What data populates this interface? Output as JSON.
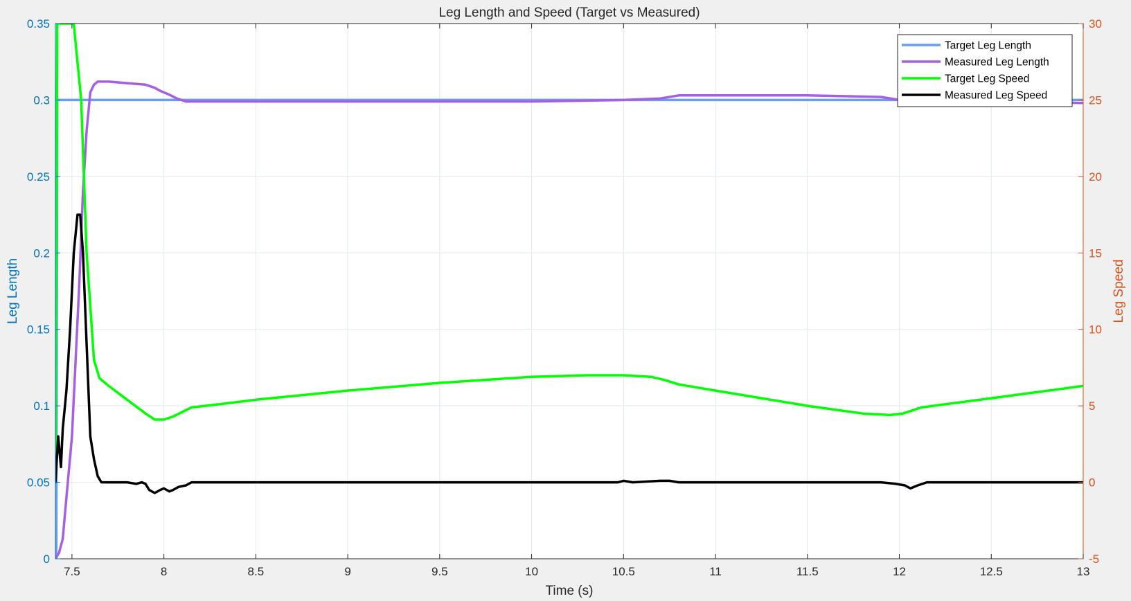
{
  "chart_data": {
    "type": "line",
    "title": "Leg Length and Speed (Target vs Measured)",
    "xlabel": "Time (s)",
    "ylabel_left": "Leg Length",
    "ylabel_right": "Leg Speed",
    "xlim": [
      7.41,
      13
    ],
    "ylim_left": [
      0,
      0.35
    ],
    "ylim_right": [
      -5,
      30
    ],
    "xticks": [
      "7.5",
      "8",
      "8.5",
      "9",
      "9.5",
      "10",
      "10.5",
      "11",
      "11.5",
      "12",
      "12.5",
      "13"
    ],
    "xtick_values": [
      7.5,
      8,
      8.5,
      9,
      9.5,
      10,
      10.5,
      11,
      11.5,
      12,
      12.5,
      13
    ],
    "yticks_left": [
      "0",
      "0.05",
      "0.1",
      "0.15",
      "0.2",
      "0.25",
      "0.3",
      "0.35"
    ],
    "ytick_values_left": [
      0,
      0.05,
      0.1,
      0.15,
      0.2,
      0.25,
      0.3,
      0.35
    ],
    "yticks_right": [
      "-5",
      "0",
      "5",
      "10",
      "15",
      "20",
      "25",
      "30"
    ],
    "ytick_values_right": [
      -5,
      0,
      5,
      10,
      15,
      20,
      25,
      30
    ],
    "grid": true,
    "legend_position": "top-right",
    "colors": {
      "left_axis": "#0072bd",
      "right_axis": "#d95319",
      "grid": "#dfe9f1",
      "background": "#ffffff"
    },
    "series": [
      {
        "name": "Target Leg Length",
        "axis": "left",
        "color": "#6a9df0",
        "x": [
          7.41,
          7.415,
          7.42,
          13
        ],
        "y": [
          0,
          0,
          0.3,
          0.3
        ]
      },
      {
        "name": "Measured Leg Length",
        "axis": "left",
        "color": "#a55fe3",
        "x": [
          7.41,
          7.43,
          7.45,
          7.47,
          7.5,
          7.52,
          7.54,
          7.56,
          7.58,
          7.6,
          7.62,
          7.64,
          7.7,
          7.8,
          7.9,
          7.95,
          7.98,
          8.02,
          8.07,
          8.12,
          8.2,
          8.5,
          9,
          9.5,
          10,
          10.5,
          10.7,
          10.8,
          10.9,
          11,
          11.5,
          11.9,
          12,
          12.5,
          13
        ],
        "y": [
          0,
          0.004,
          0.013,
          0.04,
          0.08,
          0.13,
          0.18,
          0.24,
          0.28,
          0.305,
          0.31,
          0.312,
          0.312,
          0.311,
          0.31,
          0.308,
          0.306,
          0.304,
          0.301,
          0.299,
          0.299,
          0.299,
          0.299,
          0.299,
          0.299,
          0.3,
          0.301,
          0.303,
          0.303,
          0.303,
          0.303,
          0.302,
          0.3,
          0.299,
          0.298
        ]
      },
      {
        "name": "Target Leg Speed",
        "axis": "right",
        "color": "#00ff00",
        "x": [
          7.41,
          7.42,
          7.44,
          7.51,
          7.55,
          7.58,
          7.62,
          7.65,
          7.7,
          7.8,
          7.9,
          7.95,
          8.0,
          8.05,
          8.1,
          8.15,
          8.3,
          8.5,
          9.0,
          9.5,
          10.0,
          10.3,
          10.5,
          10.65,
          10.72,
          10.8,
          11.0,
          11.5,
          11.8,
          11.95,
          12.02,
          12.07,
          12.12,
          12.5,
          13.0
        ],
        "y": [
          0,
          30,
          30,
          30,
          25,
          15,
          8,
          6.8,
          6.3,
          5.4,
          4.5,
          4.1,
          4.1,
          4.3,
          4.6,
          4.9,
          5.1,
          5.4,
          6.0,
          6.5,
          6.9,
          7.0,
          7.0,
          6.9,
          6.7,
          6.4,
          6.0,
          5.0,
          4.5,
          4.4,
          4.5,
          4.7,
          4.9,
          5.5,
          6.3
        ]
      },
      {
        "name": "Measured Leg Speed",
        "axis": "right",
        "color": "#000000",
        "x": [
          7.41,
          7.425,
          7.44,
          7.45,
          7.47,
          7.49,
          7.51,
          7.53,
          7.545,
          7.56,
          7.58,
          7.6,
          7.62,
          7.64,
          7.66,
          7.7,
          7.8,
          7.85,
          7.88,
          7.9,
          7.92,
          7.95,
          7.98,
          8.0,
          8.03,
          8.05,
          8.08,
          8.12,
          8.15,
          8.2,
          8.3,
          9.0,
          9.5,
          10.0,
          10.47,
          10.5,
          10.55,
          10.7,
          10.75,
          10.8,
          11.0,
          11.5,
          11.9,
          11.98,
          12.03,
          12.06,
          12.1,
          12.15,
          12.5,
          13.0
        ],
        "y": [
          0,
          3.0,
          1.0,
          3.5,
          6.0,
          10.0,
          15.0,
          17.5,
          17.5,
          15.0,
          9.0,
          3.0,
          1.5,
          0.4,
          0,
          0,
          0,
          -0.1,
          0,
          -0.1,
          -0.5,
          -0.7,
          -0.5,
          -0.4,
          -0.6,
          -0.5,
          -0.3,
          -0.2,
          0,
          0,
          0,
          0,
          0,
          0,
          0,
          0.1,
          0,
          0.1,
          0.1,
          0,
          0,
          0,
          0,
          -0.1,
          -0.2,
          -0.4,
          -0.2,
          0,
          0,
          0
        ]
      }
    ]
  }
}
